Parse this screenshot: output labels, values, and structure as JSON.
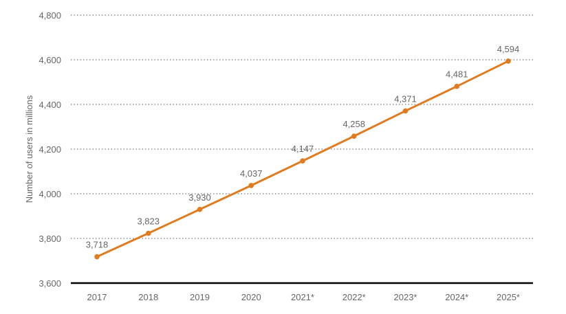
{
  "colors": {
    "line": "#E07B1F",
    "text": "#666666",
    "grid": "#777777",
    "baseline": "#000000"
  },
  "chart_data": {
    "type": "line",
    "title": "",
    "xlabel": "",
    "ylabel": "Number of users in millions",
    "categories": [
      "2017",
      "2018",
      "2019",
      "2020",
      "2021*",
      "2022*",
      "2023*",
      "2024*",
      "2025*"
    ],
    "series": [
      {
        "values": [
          3718,
          3823,
          3930,
          4037,
          4147,
          4258,
          4371,
          4481,
          4594
        ]
      }
    ],
    "data_labels": [
      "3,718",
      "3,823",
      "3,930",
      "4,037",
      "4,147",
      "4,258",
      "4,371",
      "4,481",
      "4,594"
    ],
    "ylim": [
      3600,
      4800
    ],
    "yticks": [
      3600,
      3800,
      4000,
      4200,
      4400,
      4600,
      4800
    ],
    "ytick_labels": [
      "3,600",
      "3,800",
      "4,000",
      "4,200",
      "4,400",
      "4,600",
      "4,800"
    ],
    "grid": "dotted horizontal",
    "legend": "none"
  }
}
